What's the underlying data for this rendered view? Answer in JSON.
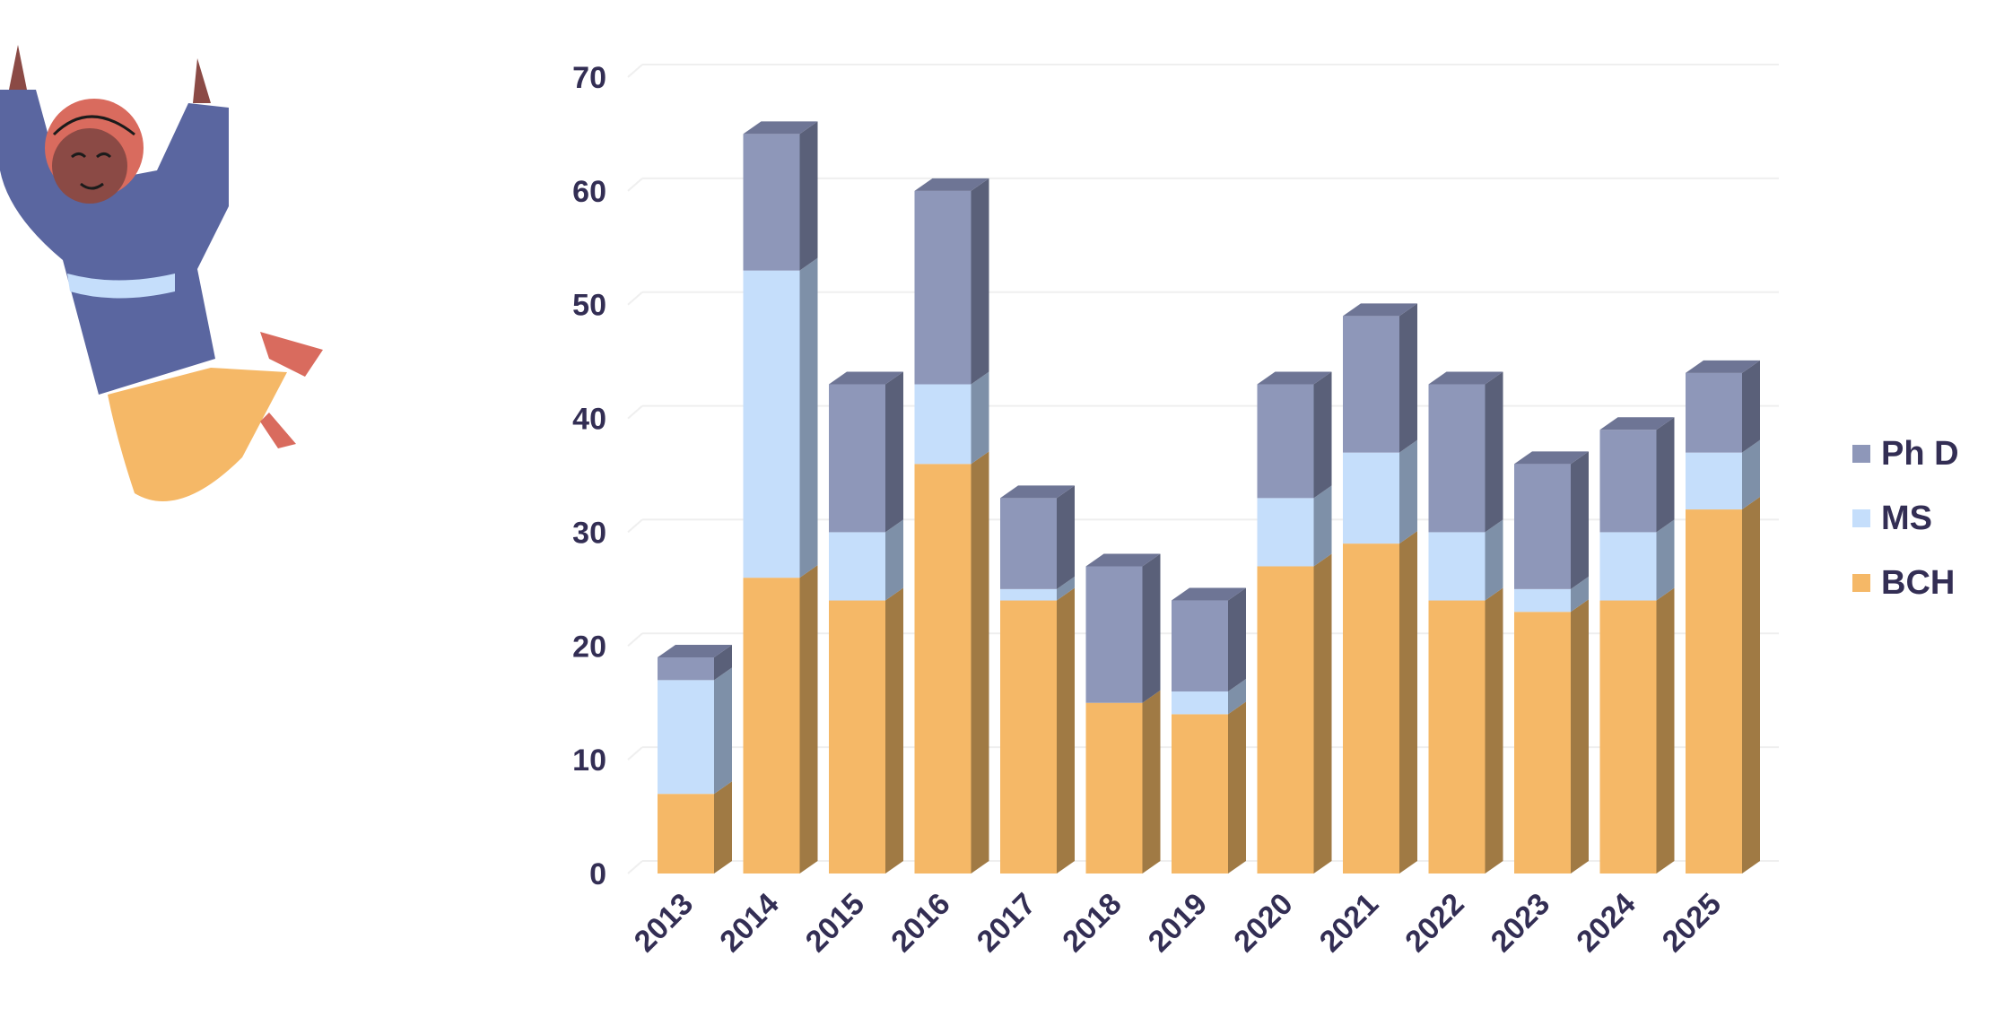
{
  "chart_data": {
    "type": "bar",
    "stacked": true,
    "style": "3d",
    "title": "",
    "xlabel": "",
    "ylabel": "",
    "ylim": [
      0,
      70
    ],
    "yticks": [
      0,
      10,
      20,
      30,
      40,
      50,
      60,
      70
    ],
    "grid": true,
    "legend_position": "right",
    "categories": [
      "2013",
      "2014",
      "2015",
      "2016",
      "2017",
      "2018",
      "2019",
      "2020",
      "2021",
      "2022",
      "2023",
      "2024",
      "2025"
    ],
    "series": [
      {
        "name": "BCH",
        "color": "#F5B867",
        "side": "#A07A44",
        "top": "#D9A25A",
        "values": [
          7,
          26,
          24,
          36,
          24,
          15,
          14,
          27,
          29,
          24,
          23,
          24,
          32
        ]
      },
      {
        "name": "MS",
        "color": "#C5DEFB",
        "side": "#7E90A8",
        "top": "#A9BED8",
        "values": [
          10,
          27,
          6,
          7,
          1,
          0,
          2,
          6,
          8,
          6,
          2,
          6,
          5
        ]
      },
      {
        "name": "Ph D",
        "color": "#8E97B9",
        "side": "#5A6079",
        "top": "#6E7595",
        "values": [
          2,
          12,
          13,
          17,
          8,
          12,
          8,
          10,
          12,
          13,
          11,
          9,
          7
        ]
      }
    ]
  },
  "legend": {
    "items": [
      "Ph D",
      "MS",
      "BCH"
    ]
  }
}
